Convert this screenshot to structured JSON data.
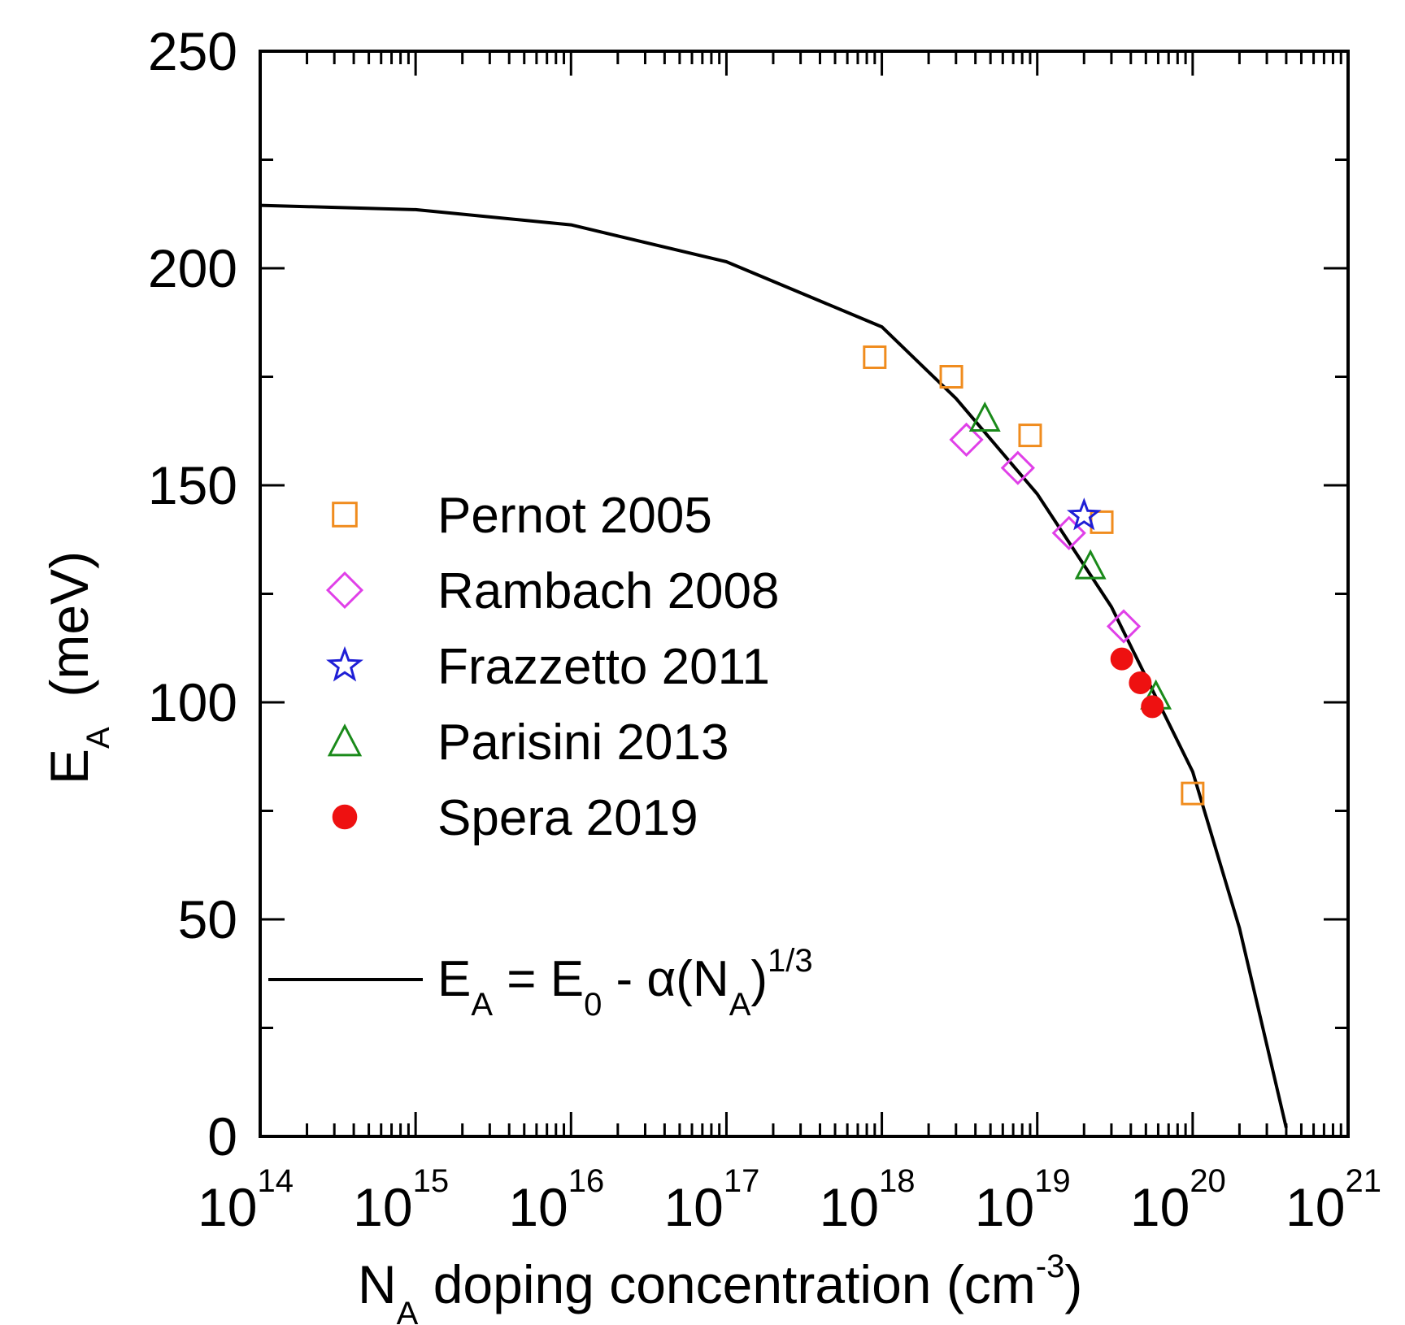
{
  "chart_data": {
    "type": "scatter",
    "xscale": "log",
    "xlim": [
      100000000000000.0,
      1e+21
    ],
    "ylim": [
      0,
      250
    ],
    "x_ticks": [
      {
        "value": 100000000000000.0,
        "base": "10",
        "exp": "14"
      },
      {
        "value": 1000000000000000.0,
        "base": "10",
        "exp": "15"
      },
      {
        "value": 1e+16,
        "base": "10",
        "exp": "16"
      },
      {
        "value": 1e+17,
        "base": "10",
        "exp": "17"
      },
      {
        "value": 1e+18,
        "base": "10",
        "exp": "18"
      },
      {
        "value": 1e+19,
        "base": "10",
        "exp": "19"
      },
      {
        "value": 1e+20,
        "base": "10",
        "exp": "20"
      },
      {
        "value": 1e+21,
        "base": "10",
        "exp": "21"
      }
    ],
    "y_ticks": [
      {
        "value": 0,
        "label": "0"
      },
      {
        "value": 50,
        "label": "50"
      },
      {
        "value": 100,
        "label": "100"
      },
      {
        "value": 150,
        "label": "150"
      },
      {
        "value": 200,
        "label": "200"
      },
      {
        "value": 250,
        "label": "250"
      }
    ],
    "xlabel": {
      "main": "N",
      "sub": "A",
      "rest": " doping concentration (cm",
      "sup": "-3",
      "end": ")"
    },
    "ylabel": {
      "main": "E",
      "sub": "A",
      "rest": "  (meV)"
    },
    "grid": false,
    "legend_position": "center-left",
    "series": [
      {
        "name": "Pernot 2005",
        "marker": "square",
        "color": "#f08c1e",
        "points": [
          [
            9e+17,
            179.5
          ],
          [
            2.8e+18,
            175
          ],
          [
            9e+18,
            161.5
          ],
          [
            2.6e+19,
            141.5
          ],
          [
            1e+20,
            79
          ]
        ]
      },
      {
        "name": "Rambach 2008",
        "marker": "diamond",
        "color": "#e040e8",
        "points": [
          [
            3.5e+18,
            160.5
          ],
          [
            7.5e+18,
            154
          ],
          [
            1.6e+19,
            139
          ],
          [
            3.6e+19,
            117.5
          ]
        ]
      },
      {
        "name": "Frazzetto 2011",
        "marker": "star",
        "color": "#1f1fd6",
        "points": [
          [
            2e+19,
            143
          ]
        ]
      },
      {
        "name": "Parisini 2013",
        "marker": "triangle",
        "color": "#1a8a1a",
        "points": [
          [
            4.6e+18,
            165.5
          ],
          [
            2.2e+19,
            131.5
          ],
          [
            5.8e+19,
            101.5
          ]
        ]
      },
      {
        "name": "Spera 2019",
        "marker": "circle",
        "color": "#ee1111",
        "points": [
          [
            3.5e+19,
            110
          ],
          [
            4.6e+19,
            104.5
          ],
          [
            5.5e+19,
            99
          ]
        ]
      }
    ],
    "fit_line": {
      "label": {
        "a": "E",
        "a_sub": "A",
        "b": " = E",
        "b_sub": "0",
        "c": " - α(N",
        "c_sub": "A",
        "d": ")",
        "d_sup": "1/3"
      },
      "color": "#000000",
      "points": [
        [
          100000000000000.0,
          214.5
        ],
        [
          1000000000000000.0,
          213.5
        ],
        [
          1e+16,
          210
        ],
        [
          1e+17,
          201.5
        ],
        [
          1e+18,
          186.5
        ],
        [
          3e+18,
          170
        ],
        [
          1e+19,
          148
        ],
        [
          3e+19,
          122
        ],
        [
          1e+20,
          84
        ],
        [
          2e+20,
          48
        ],
        [
          4e+20,
          2
        ]
      ]
    }
  }
}
